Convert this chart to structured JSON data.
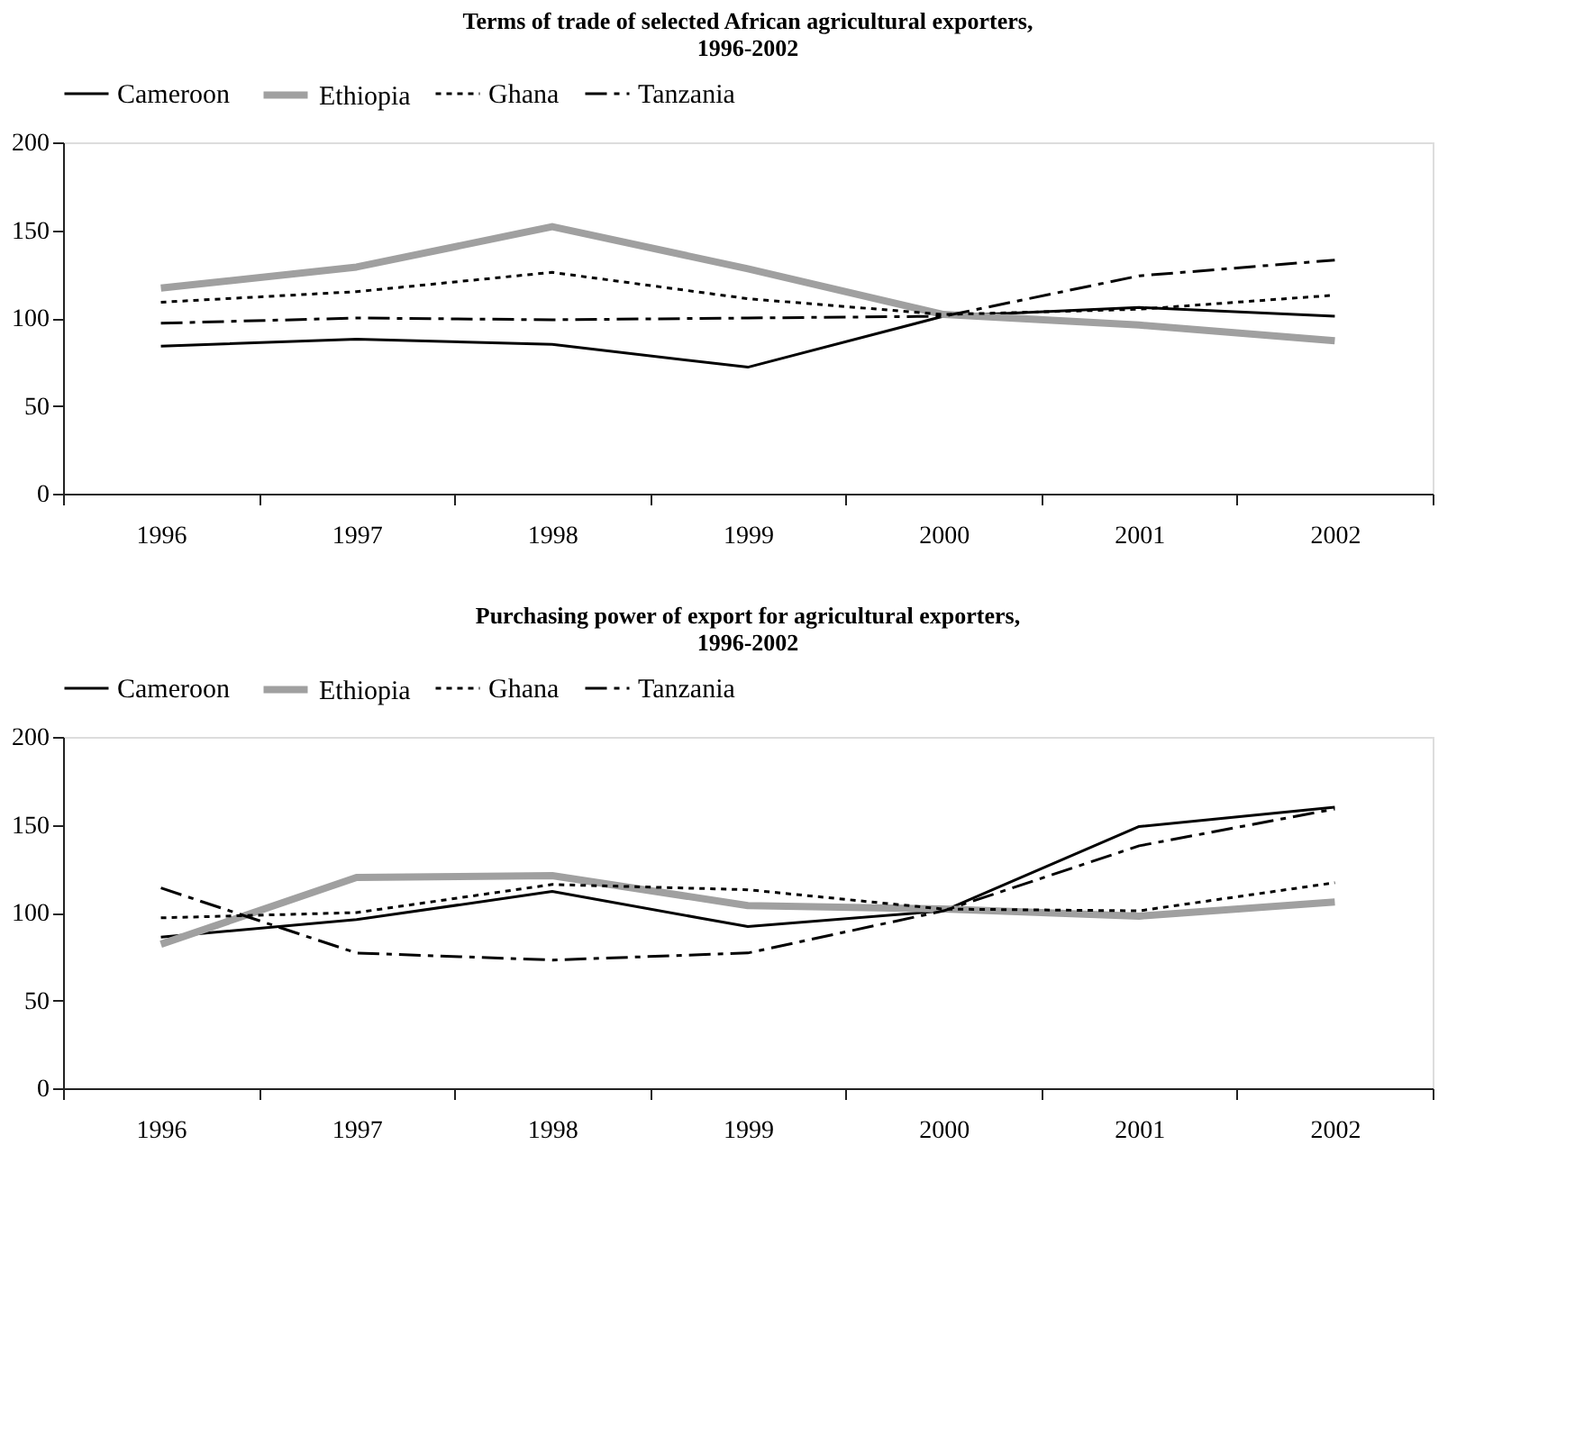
{
  "chart_data": [
    {
      "type": "line",
      "title": "Terms of trade of selected African agricultural exporters,\n1996-2002",
      "categories": [
        "1996",
        "1997",
        "1998",
        "1999",
        "2000",
        "2001",
        "2002"
      ],
      "ylim": [
        0,
        200
      ],
      "yticks": [
        0,
        50,
        100,
        150,
        200
      ],
      "grid": false,
      "legend": "top",
      "marker": "none",
      "series": [
        {
          "name": "Cameroon",
          "color": "#000000",
          "line_style": "solid",
          "values": [
            84,
            88,
            85,
            72,
            101,
            106,
            101
          ]
        },
        {
          "name": "Ethiopia",
          "color": "#a0a0a0",
          "line_style": "solid",
          "values": [
            117,
            129,
            152,
            128,
            102,
            96,
            87
          ]
        },
        {
          "name": "Ghana",
          "color": "#000000",
          "line_style": "dotted",
          "values": [
            109,
            115,
            126,
            111,
            102,
            105,
            113
          ]
        },
        {
          "name": "Tanzania",
          "color": "#000000",
          "line_style": "dashed",
          "values": [
            97,
            100,
            99,
            100,
            101,
            124,
            133
          ]
        }
      ]
    },
    {
      "type": "line",
      "title": "Purchasing power of export for agricultural exporters,\n1996-2002",
      "categories": [
        "1996",
        "1997",
        "1998",
        "1999",
        "2000",
        "2001",
        "2002"
      ],
      "ylim": [
        0,
        200
      ],
      "yticks": [
        0,
        50,
        100,
        150,
        200
      ],
      "grid": false,
      "legend": "top",
      "marker": "none",
      "series": [
        {
          "name": "Cameroon",
          "color": "#000000",
          "line_style": "solid",
          "values": [
            86,
            96,
            112,
            92,
            101,
            149,
            160
          ]
        },
        {
          "name": "Ethiopia",
          "color": "#a0a0a0",
          "line_style": "solid",
          "values": [
            82,
            120,
            121,
            104,
            102,
            98,
            106
          ]
        },
        {
          "name": "Ghana",
          "color": "#000000",
          "line_style": "dotted",
          "values": [
            97,
            100,
            116,
            113,
            102,
            101,
            117
          ]
        },
        {
          "name": "Tanzania",
          "color": "#000000",
          "line_style": "dashed",
          "values": [
            114,
            77,
            73,
            77,
            101,
            138,
            159
          ]
        }
      ]
    }
  ]
}
